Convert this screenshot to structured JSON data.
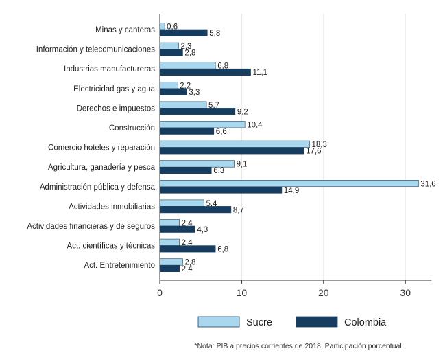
{
  "chart_data": {
    "type": "bar",
    "orientation": "horizontal",
    "categories": [
      "Minas y canteras",
      "Información y telecomunicaciones",
      "Industrias manufactureras",
      "Electricidad gas y agua",
      "Derechos e impuestos",
      "Construcción",
      "Comercio hoteles y reparación",
      "Agricultura, ganadería y pesca",
      "Administración pública y defensa",
      "Actividades inmobiliarias",
      "Actividades financieras y de seguros",
      "Act. científicas y técnicas",
      "Act. Entretenimiento"
    ],
    "series": [
      {
        "name": "Sucre",
        "color": "#a9d8ee",
        "values": [
          0.6,
          2.3,
          6.8,
          2.2,
          5.7,
          10.4,
          18.3,
          9.1,
          31.6,
          5.4,
          2.4,
          2.4,
          2.8
        ],
        "labels": [
          "0,6",
          "2,3",
          "6,8",
          "2,2",
          "5,7",
          "10,4",
          "18,3",
          "9,1",
          "31,6",
          "5,4",
          "2,4",
          "2,4",
          "2,8"
        ]
      },
      {
        "name": "Colombia",
        "color": "#163d5f",
        "values": [
          5.8,
          2.8,
          11.1,
          3.3,
          9.2,
          6.6,
          17.6,
          6.3,
          14.9,
          8.7,
          4.3,
          6.8,
          2.4
        ],
        "labels": [
          "5,8",
          "2,8",
          "11,1",
          "3,3",
          "9,2",
          "6,6",
          "17,6",
          "6,3",
          "14,9",
          "8,7",
          "4,3",
          "6,8",
          "2,4"
        ]
      }
    ],
    "x_ticks": [
      "0",
      "10",
      "20",
      "30"
    ],
    "xlim": [
      0,
      33.2
    ],
    "grid": true,
    "legend_position": "bottom",
    "note": "*Nota: PIB a precios corrientes de 2018. Participación porcentual."
  }
}
